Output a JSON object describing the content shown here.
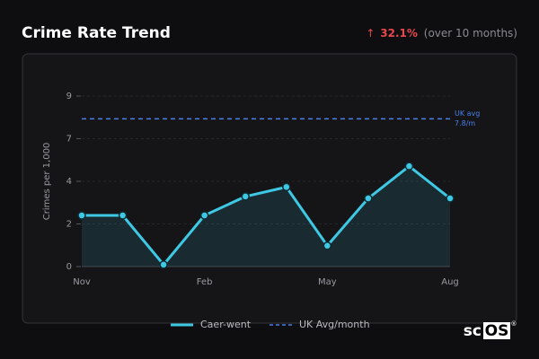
{
  "header": {
    "change_arrow": "↑",
    "change": "32.1%",
    "change_note": "(over 10 months)"
  },
  "chart_data": {
    "type": "line",
    "title": "Crime Rate Trend",
    "y_label": "Crimes per 1,000",
    "categories": [
      "Nov",
      null,
      null,
      "Feb",
      null,
      null,
      "May",
      null,
      null,
      "Aug"
    ],
    "series": [
      {
        "name": "Caer-went",
        "color": "#3ec8e4",
        "values": [
          2.7,
          2.7,
          0.1,
          2.7,
          3.7,
          4.2,
          1.1,
          3.6,
          5.3,
          3.6
        ]
      }
    ],
    "reference_line": {
      "name": "UK Avg/month",
      "value": 7.8,
      "color": "#4a7fe8",
      "annotation": [
        "UK avg",
        "7.8/m"
      ]
    },
    "ylim": [
      0,
      9.5
    ],
    "yticks": [
      0,
      {
        "value": 2.25,
        "label": "2"
      },
      {
        "value": 4.5,
        "label": "4"
      },
      {
        "value": 6.75,
        "label": "7"
      },
      9
    ],
    "grid": true
  },
  "logo": {
    "left": "sc",
    "boxed": "OS",
    "mark": "®"
  }
}
